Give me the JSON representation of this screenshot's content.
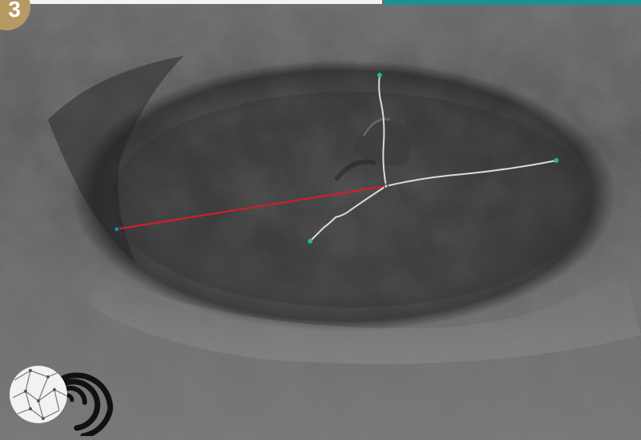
{
  "badge": {
    "step_number": "3",
    "color": "#b79a62"
  },
  "colors": {
    "accent_bar": "#1f8f96",
    "measure_line": "#d21e2a",
    "path_lines": "#d9dcdc",
    "markers": "#29b39a"
  },
  "scene": {
    "type": "3d-terrain-view",
    "subject": "crater-surface",
    "measurement_lines": 1,
    "path_branches": 3
  },
  "logo": {
    "icon": "globe-spiral-logo"
  }
}
